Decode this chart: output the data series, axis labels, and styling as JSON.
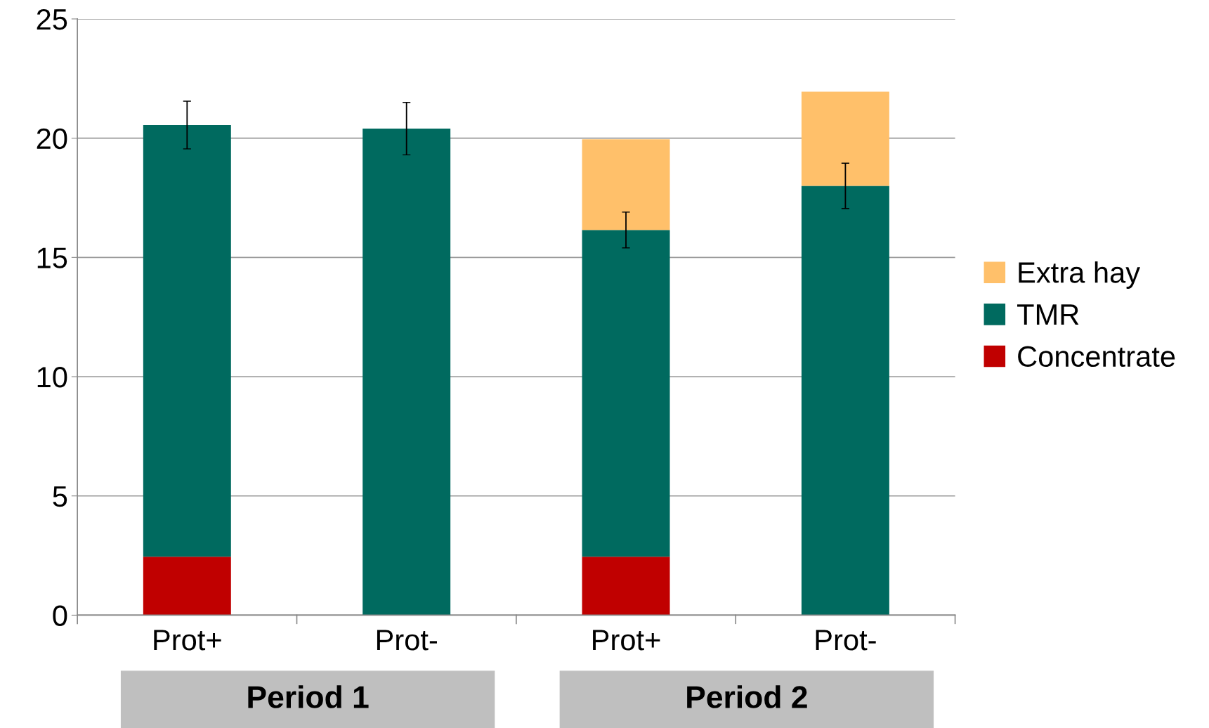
{
  "chart_data": {
    "type": "bar",
    "stacked": true,
    "categories": [
      "Prot+",
      "Prot-",
      "Prot+",
      "Prot-"
    ],
    "series": [
      {
        "name": "Concentrate",
        "color": "#c00000",
        "values": [
          2.45,
          null,
          2.45,
          null
        ]
      },
      {
        "name": "TMR",
        "color": "#006a5f",
        "values": [
          18.1,
          20.4,
          13.7,
          18.0
        ],
        "errors": [
          1.0,
          1.1,
          0.75,
          0.95
        ]
      },
      {
        "name": "Extra hay",
        "color": "#ffc06a",
        "values": [
          null,
          null,
          3.8,
          3.95
        ]
      }
    ],
    "ylim": [
      0,
      25
    ],
    "yticks": [
      0,
      5,
      10,
      15,
      20,
      25
    ],
    "grid": "y",
    "legend": "right",
    "annotations": [
      "Period 1",
      "Period 2"
    ]
  }
}
